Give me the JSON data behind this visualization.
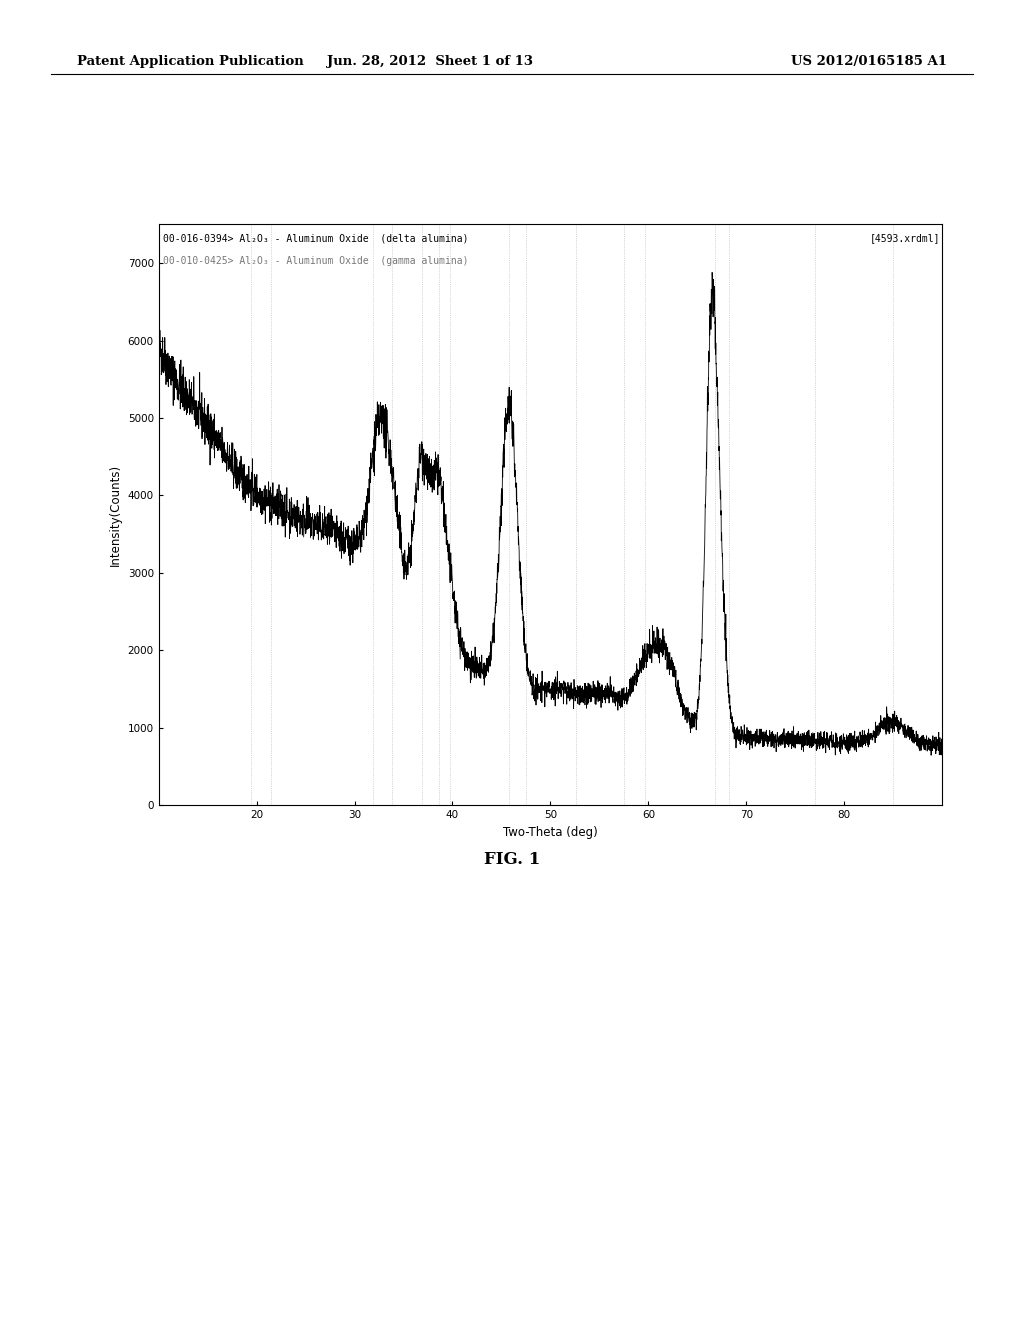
{
  "header_left": "Patent Application Publication",
  "header_mid": "Jun. 28, 2012  Sheet 1 of 13",
  "header_right": "US 2012/0165185 A1",
  "fig_label": "FIG. 1",
  "legend_line1": "00-016-0394> Al₂O₃ - Aluminum Oxide  (delta alumina)",
  "legend_line2": "00-010-0425> Al₂O₃ - Aluminum Oxide  (gamma alumina)",
  "legend_right": "[4593.xrdml]",
  "xlabel": "Two-Theta (deg)",
  "ylabel": "Intensity(Counts)",
  "xlim": [
    10,
    90
  ],
  "ylim": [
    0,
    7500
  ],
  "yticks": [
    0,
    1000,
    2000,
    3000,
    4000,
    5000,
    6000,
    7000
  ],
  "xticks": [
    20,
    30,
    40,
    50,
    60,
    70,
    80
  ],
  "background_color": "#ffffff",
  "plot_bg": "#ffffff",
  "line_color": "#000000",
  "ref_positions": [
    19.4,
    21.5,
    31.9,
    33.8,
    36.9,
    38.6,
    39.7,
    45.8,
    47.5,
    52.6,
    57.5,
    59.7,
    66.8,
    68.2,
    77.0,
    85.0
  ]
}
